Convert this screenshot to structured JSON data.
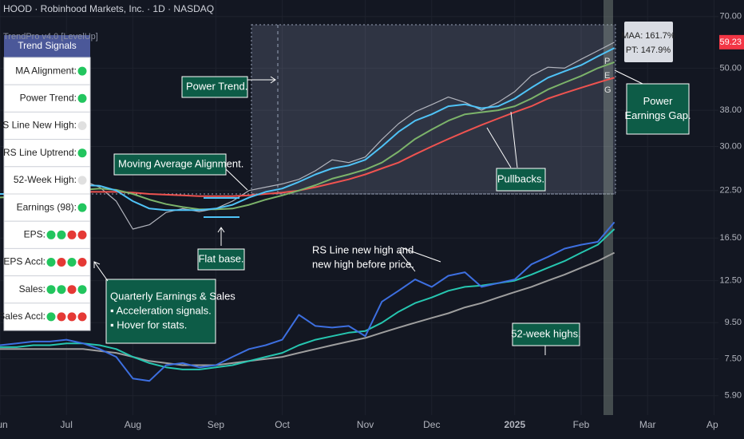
{
  "chart_data": {
    "type": "line",
    "title": "HOOD · Robinhood Markets, Inc. · 1D · NASDAQ",
    "subtitle": "TrendPro v4.0 [LevelUp]",
    "log_scale": true,
    "categories": [
      "Jun",
      null,
      null,
      null,
      "Jul",
      null,
      null,
      null,
      "Aug",
      null,
      null,
      null,
      null,
      "Sep",
      null,
      null,
      null,
      "Oct",
      null,
      null,
      null,
      null,
      "Nov",
      null,
      null,
      null,
      "Dec",
      null,
      null,
      null,
      null,
      "2025",
      null,
      null,
      null,
      "Feb",
      null,
      null,
      null,
      "Mar",
      null,
      null,
      null,
      "Apr"
    ],
    "series": [
      {
        "color": "#b2b5be",
        "values": [
          22,
          22,
          22.5,
          23,
          23.5,
          24,
          23,
          21,
          17.5,
          18,
          19.5,
          20,
          19.6,
          20,
          21,
          22.5,
          23,
          23.5,
          24.2,
          25.6,
          27.5,
          27,
          28,
          31.4,
          34.8,
          37.6,
          39.4,
          41.4,
          40,
          38,
          40,
          42.9,
          47.6,
          50.3,
          50,
          53,
          56,
          59.23,
          null,
          null,
          null,
          null,
          null,
          null
        ]
      },
      {
        "color": "#ef5350",
        "values": [
          22,
          22,
          22,
          22.1,
          22.2,
          22.3,
          22.3,
          22.3,
          22.2,
          22,
          21.9,
          21.8,
          21.7,
          21.7,
          21.7,
          21.8,
          22,
          22.2,
          22.5,
          23,
          23.6,
          24.2,
          25,
          26,
          27,
          28.5,
          30,
          31.5,
          33,
          34.5,
          36,
          37.5,
          39,
          41,
          42.5,
          44,
          45.5,
          47,
          null,
          null,
          null,
          null,
          null,
          null
        ]
      },
      {
        "color": "#7cb36a",
        "values": [
          21.5,
          21.6,
          21.8,
          22,
          22.3,
          22.6,
          22.8,
          22.6,
          22,
          21.2,
          20.6,
          20.2,
          19.9,
          19.9,
          20,
          20.5,
          21.2,
          21.8,
          22.5,
          23.3,
          24.3,
          25,
          25.8,
          27,
          29,
          31.5,
          33.5,
          35.5,
          37,
          37.5,
          38,
          39,
          41,
          43.5,
          45.5,
          47.5,
          50,
          52,
          null,
          null,
          null,
          null,
          null,
          null
        ]
      },
      {
        "color": "#4fc3f7",
        "values": [
          22,
          22,
          22.3,
          22.6,
          23,
          23.3,
          23.2,
          22.5,
          21,
          20,
          19.8,
          19.8,
          19.8,
          20,
          20.5,
          21.5,
          22.3,
          22.8,
          23.8,
          25,
          26,
          26.5,
          27.5,
          30,
          33,
          35.5,
          37,
          39,
          39.5,
          38.5,
          39,
          41,
          44,
          47,
          49,
          51,
          54,
          57,
          null,
          null,
          null,
          null,
          null,
          null
        ]
      },
      {
        "color": "#9e9e9e",
        "values": [
          8,
          8,
          8,
          8,
          8,
          8,
          7.9,
          7.8,
          7.6,
          7.4,
          7.3,
          7.2,
          7.2,
          7.2,
          7.3,
          7.4,
          7.5,
          7.6,
          7.8,
          8,
          8.2,
          8.4,
          8.6,
          8.9,
          9.2,
          9.5,
          9.8,
          10.1,
          10.5,
          10.8,
          11.2,
          11.6,
          12,
          12.5,
          13,
          13.6,
          14.2,
          15,
          null,
          null,
          null,
          null,
          null,
          null
        ]
      },
      {
        "color": "#26c6b0",
        "values": [
          8.1,
          8.1,
          8.2,
          8.2,
          8.3,
          8.3,
          8.2,
          8,
          7.6,
          7.3,
          7.1,
          7,
          7,
          7.1,
          7.2,
          7.4,
          7.6,
          7.8,
          8.2,
          8.5,
          8.7,
          8.9,
          9,
          9.5,
          10.2,
          10.8,
          11.2,
          11.7,
          12,
          12.1,
          12.3,
          12.5,
          13,
          13.6,
          14.2,
          15,
          15.8,
          17.5,
          null,
          null,
          null,
          null,
          null,
          null
        ]
      },
      {
        "color": "#3d6fe0",
        "values": [
          8.2,
          8.3,
          8.4,
          8.4,
          8.5,
          8.3,
          8,
          7.6,
          6.6,
          6.5,
          7.2,
          7.3,
          7.1,
          7.2,
          7.6,
          8,
          8.2,
          8.5,
          10,
          9.3,
          9.2,
          9.3,
          8.7,
          10.9,
          11.7,
          12.6,
          12,
          12.9,
          13.2,
          12,
          12.3,
          12.6,
          13.9,
          14.6,
          15.4,
          15.8,
          16.1,
          18.3,
          null,
          null,
          null,
          null,
          null,
          null
        ]
      }
    ],
    "ylim": [
      5.2,
      78
    ],
    "yticks": [
      {
        "value": 70,
        "label": "70.00"
      },
      {
        "value": 50,
        "label": "50.00"
      },
      {
        "value": 38,
        "label": "38.00"
      },
      {
        "value": 30,
        "label": "30.00"
      },
      {
        "value": 22.5,
        "label": "22.50"
      },
      {
        "value": 16.5,
        "label": "16.50"
      },
      {
        "value": 12.5,
        "label": "12.50"
      },
      {
        "value": 9.5,
        "label": "9.50"
      },
      {
        "value": 7.5,
        "label": "7.50"
      },
      {
        "value": 5.9,
        "label": "5.90"
      }
    ],
    "last_price": 59.23,
    "stats": [
      "MAA: 161.7%",
      "PT: 147.9%"
    ],
    "gap_letters": [
      "P",
      "E",
      "G"
    ],
    "annotations": [
      [
        "Power Trend."
      ],
      [
        "Moving Average Alignment."
      ],
      [
        "Flat base."
      ],
      [
        "Quarterly Earnings & Sales",
        "▪ Acceleration signals.",
        "▪ Hover for stats."
      ],
      [
        "RS Line new high and",
        "new high before price."
      ],
      [
        "Pullbacks."
      ],
      [
        "Power",
        "Earnings Gap."
      ],
      [
        "52-week highs."
      ]
    ],
    "signals": {
      "title": "Trend Signals",
      "rows": [
        {
          "label": "MA Alignment:",
          "dots": [
            "#22c55e"
          ]
        },
        {
          "label": "Power Trend:",
          "dots": [
            "#22c55e"
          ]
        },
        {
          "label": "RS Line New High:",
          "dots": [
            "#e0e0e0"
          ]
        },
        {
          "label": "RS Line Uptrend:",
          "dots": [
            "#22c55e"
          ]
        },
        {
          "label": "52-Week High:",
          "dots": [
            "#e0e0e0"
          ]
        },
        {
          "label": "Earnings (98):",
          "dots": [
            "#22c55e"
          ]
        },
        {
          "label": "EPS:",
          "dots": [
            "#22c55e",
            "#22c55e",
            "#e53935",
            "#e53935"
          ]
        },
        {
          "label": "EPS Accl:",
          "dots": [
            "#22c55e",
            "#e53935",
            "#22c55e",
            "#e53935"
          ]
        },
        {
          "label": "Sales:",
          "dots": [
            "#22c55e",
            "#22c55e",
            "#e53935",
            "#22c55e"
          ]
        },
        {
          "label": "Sales Accl:",
          "dots": [
            "#22c55e",
            "#e53935",
            "#e53935",
            "#e53935"
          ]
        }
      ]
    }
  }
}
